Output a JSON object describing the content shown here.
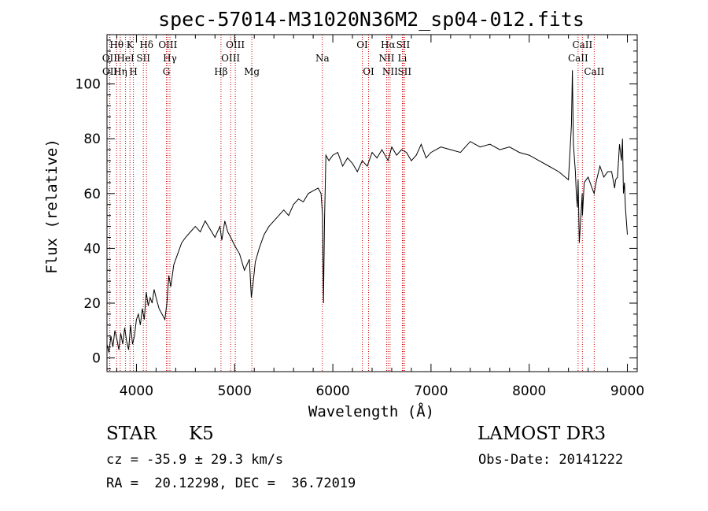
{
  "chart_data": {
    "type": "line",
    "title": "spec-57014-M31020N36M2_sp04-012.fits",
    "xlabel": "Wavelength (Å)",
    "ylabel": "Flux (relative)",
    "xlim": [
      3700,
      9100
    ],
    "ylim": [
      -5,
      118
    ],
    "x_ticks": [
      4000,
      5000,
      6000,
      7000,
      8000,
      9000
    ],
    "y_ticks": [
      0,
      20,
      40,
      60,
      80,
      100
    ],
    "grid": false,
    "line_color": "#000000",
    "marker_color": "#cc0000",
    "series": [
      {
        "x": [
          3700,
          3720,
          3740,
          3760,
          3780,
          3800,
          3820,
          3840,
          3860,
          3880,
          3900,
          3920,
          3940,
          3960,
          3980,
          4000,
          4020,
          4040,
          4060,
          4080,
          4100,
          4120,
          4140,
          4160,
          4180,
          4200,
          4230,
          4260,
          4290,
          4310,
          4330,
          4350,
          4380,
          4420,
          4460,
          4500,
          4550,
          4600,
          4650,
          4700,
          4750,
          4800,
          4850,
          4870,
          4900,
          4930,
          4960,
          5000,
          5050,
          5100,
          5150,
          5170,
          5190,
          5210,
          5250,
          5300,
          5350,
          5400,
          5450,
          5500,
          5550,
          5600,
          5650,
          5700,
          5750,
          5800,
          5850,
          5880,
          5895,
          5905,
          5915,
          5930,
          5960,
          6000,
          6050,
          6100,
          6150,
          6200,
          6250,
          6300,
          6350,
          6400,
          6450,
          6500,
          6563,
          6600,
          6650,
          6700,
          6750,
          6800,
          6850,
          6900,
          6950,
          7000,
          7100,
          7200,
          7300,
          7400,
          7500,
          7600,
          7700,
          7800,
          7900,
          8000,
          8100,
          8200,
          8300,
          8400,
          8430,
          8440,
          8450,
          8470,
          8480,
          8490,
          8498,
          8510,
          8540,
          8542,
          8560,
          8600,
          8640,
          8662,
          8680,
          8720,
          8760,
          8800,
          8840,
          8870,
          8880,
          8900,
          8920,
          8940,
          8950,
          8960,
          8970,
          8980,
          9000
        ],
        "y": [
          5,
          2,
          8,
          4,
          10,
          7,
          3,
          9,
          5,
          11,
          6,
          3,
          12,
          5,
          8,
          14,
          16,
          12,
          18,
          14,
          24,
          19,
          22,
          20,
          25,
          22,
          18,
          16,
          14,
          20,
          30,
          26,
          34,
          38,
          42,
          44,
          46,
          48,
          46,
          50,
          47,
          44,
          48,
          43,
          50,
          46,
          44,
          41,
          38,
          32,
          36,
          22,
          28,
          35,
          40,
          45,
          48,
          50,
          52,
          54,
          52,
          56,
          58,
          57,
          60,
          61,
          62,
          60,
          52,
          20,
          50,
          74,
          72,
          74,
          75,
          70,
          73,
          71,
          68,
          72,
          70,
          75,
          73,
          76,
          72,
          77,
          74,
          76,
          75,
          72,
          74,
          78,
          73,
          75,
          77,
          76,
          75,
          79,
          77,
          78,
          76,
          77,
          75,
          74,
          72,
          70,
          68,
          65,
          85,
          105,
          78,
          68,
          60,
          55,
          65,
          42,
          60,
          52,
          64,
          66,
          62,
          60,
          64,
          70,
          66,
          68,
          68,
          62,
          65,
          66,
          78,
          72,
          80,
          60,
          64,
          55,
          45
        ]
      }
    ],
    "spectral_lines": [
      {
        "label": "OII",
        "x": 3727,
        "row": 2
      },
      {
        "label": "OII",
        "x": 3729,
        "row": 3
      },
      {
        "label": "Hθ",
        "x": 3798,
        "row": 1
      },
      {
        "label": "Hη",
        "x": 3835,
        "row": 3
      },
      {
        "label": "HeI",
        "x": 3889,
        "row": 2
      },
      {
        "label": "K",
        "x": 3934,
        "row": 1
      },
      {
        "label": "H",
        "x": 3969,
        "row": 3
      },
      {
        "label": "SII",
        "x": 4070,
        "row": 2
      },
      {
        "label": "Hδ",
        "x": 4102,
        "row": 1
      },
      {
        "label": "OIII",
        "x": 4320,
        "row": 1
      },
      {
        "label": "Hγ",
        "x": 4341,
        "row": 2
      },
      {
        "label": "G",
        "x": 4305,
        "row": 3
      },
      {
        "label": "Hβ",
        "x": 4861,
        "row": 3
      },
      {
        "label": "OIII",
        "x": 4959,
        "row": 2
      },
      {
        "label": "OIII",
        "x": 5007,
        "row": 1
      },
      {
        "label": "Mg",
        "x": 5175,
        "row": 3
      },
      {
        "label": "Na",
        "x": 5894,
        "row": 2
      },
      {
        "label": "OI",
        "x": 6300,
        "row": 1
      },
      {
        "label": "OI",
        "x": 6364,
        "row": 3
      },
      {
        "label": "NII",
        "x": 6548,
        "row": 2
      },
      {
        "label": "Hα",
        "x": 6563,
        "row": 1
      },
      {
        "label": "NII",
        "x": 6583,
        "row": 3
      },
      {
        "label": "Li",
        "x": 6708,
        "row": 2
      },
      {
        "label": "SII",
        "x": 6716,
        "row": 1
      },
      {
        "label": "SII",
        "x": 6731,
        "row": 3
      },
      {
        "label": "CaII",
        "x": 8498,
        "row": 2
      },
      {
        "label": "CaII",
        "x": 8542,
        "row": 1
      },
      {
        "label": "CaII",
        "x": 8662,
        "row": 3
      }
    ]
  },
  "info": {
    "class_label": "STAR",
    "subclass": "K5",
    "survey": "LAMOST DR3",
    "redshift": "cz = -35.9 ± 29.3 km/s",
    "obs_date": "Obs-Date: 20141222",
    "coords": "RA =  20.12298, DEC =  36.72019"
  }
}
